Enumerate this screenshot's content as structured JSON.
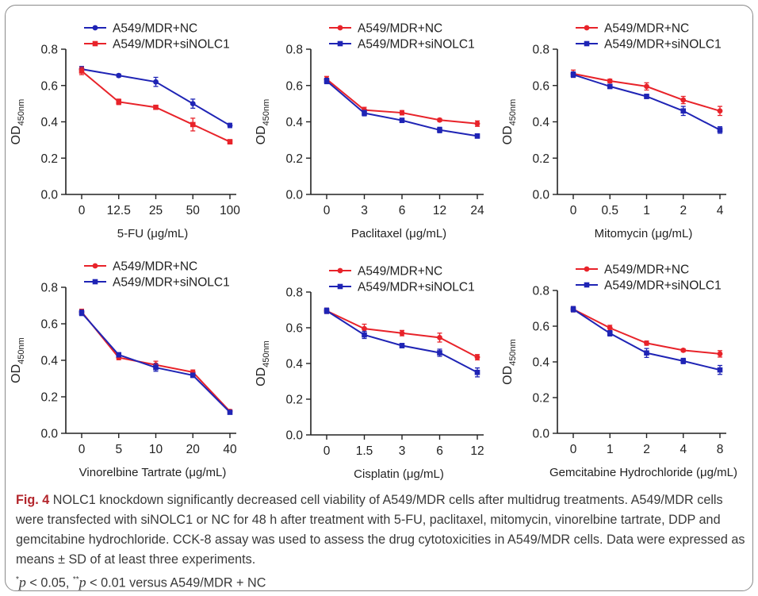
{
  "figure": {
    "label": "Fig. 4",
    "title": "NOLC1 knockdown significantly decreased cell viability of A549/MDR cells after multidrug treatments.",
    "body": "A549/MDR cells were transfected with siNOLC1 or NC for 48 h after treatment with 5-FU, paclitaxel, mitomycin, vinorelbine tartrate, DDP and gemcitabine hydrochloride. CCK-8 assay was used to assess the drug cytotoxicities in A549/MDR cells. Data were expressed as means ± SD of at least three experiments.",
    "sig_p": "p",
    "sig_05": " < 0.05, ",
    "sig_01": " < 0.01 versus A549/MDR + NC",
    "star1": "*",
    "star2": "**"
  },
  "colors": {
    "nc": "#e8232a",
    "si": "#1f24b5",
    "axis": "#222222",
    "fig_label": "#b3262c"
  },
  "chart_data": [
    {
      "type": "line",
      "xlabel": "5-FU (μg/mL)",
      "ylabel": "OD450nm",
      "ylim": [
        0,
        0.8
      ],
      "yticks": [
        "0.0",
        "0.2",
        "0.4",
        "0.6",
        "0.8"
      ],
      "categories": [
        "0",
        "12.5",
        "25",
        "50",
        "100"
      ],
      "legend_order": [
        "A549/MDR+NC",
        "A549/MDR+siNOLC1"
      ],
      "series": [
        {
          "name": "A549/MDR+NC",
          "color": "#1f24b5",
          "marker": "circle",
          "values": [
            0.69,
            0.655,
            0.62,
            0.5,
            0.38
          ],
          "errors": [
            0.015,
            0.008,
            0.025,
            0.025,
            0.012
          ]
        },
        {
          "name": "A549/MDR+siNOLC1",
          "color": "#e8232a",
          "marker": "square",
          "values": [
            0.68,
            0.51,
            0.48,
            0.385,
            0.29
          ],
          "errors": [
            0.02,
            0.015,
            0.01,
            0.035,
            0.012
          ]
        }
      ]
    },
    {
      "type": "line",
      "xlabel": "Paclitaxel (μg/mL)",
      "ylabel": "OD450nm",
      "ylim": [
        0,
        0.8
      ],
      "yticks": [
        "0.0",
        "0.2",
        "0.4",
        "0.6",
        "0.8"
      ],
      "categories": [
        "0",
        "3",
        "6",
        "12",
        "24"
      ],
      "legend_order": [
        "A549/MDR+NC",
        "A549/MDR+siNOLC1"
      ],
      "series": [
        {
          "name": "A549/MDR+NC",
          "color": "#e8232a",
          "marker": "circle",
          "values": [
            0.635,
            0.465,
            0.45,
            0.41,
            0.39
          ],
          "errors": [
            0.015,
            0.015,
            0.012,
            0.008,
            0.015
          ]
        },
        {
          "name": "A549/MDR+siNOLC1",
          "color": "#1f24b5",
          "marker": "square",
          "values": [
            0.625,
            0.448,
            0.408,
            0.355,
            0.322
          ],
          "errors": [
            0.015,
            0.015,
            0.012,
            0.015,
            0.012
          ]
        }
      ]
    },
    {
      "type": "line",
      "xlabel": "Mitomycin (μg/mL)",
      "ylabel": "OD450nm",
      "ylim": [
        0,
        0.8
      ],
      "yticks": [
        "0.0",
        "0.2",
        "0.4",
        "0.6",
        "0.8"
      ],
      "categories": [
        "0",
        "0.5",
        "1",
        "2",
        "4"
      ],
      "legend_order": [
        "A549/MDR+NC",
        "A549/MDR+siNOLC1"
      ],
      "series": [
        {
          "name": "A549/MDR+NC",
          "color": "#e8232a",
          "marker": "circle",
          "values": [
            0.665,
            0.625,
            0.595,
            0.52,
            0.46
          ],
          "errors": [
            0.02,
            0.01,
            0.02,
            0.02,
            0.025
          ]
        },
        {
          "name": "A549/MDR+siNOLC1",
          "color": "#1f24b5",
          "marker": "square",
          "values": [
            0.66,
            0.595,
            0.54,
            0.46,
            0.355
          ],
          "errors": [
            0.015,
            0.012,
            0.012,
            0.025,
            0.018
          ]
        }
      ]
    },
    {
      "type": "line",
      "xlabel": "Vinorelbine Tartrate (μg/mL)",
      "ylabel": "OD450nm",
      "ylim": [
        0,
        0.8
      ],
      "yticks": [
        "0.0",
        "0.2",
        "0.4",
        "0.6",
        "0.8"
      ],
      "categories": [
        "0",
        "5",
        "10",
        "20",
        "40"
      ],
      "legend_order": [
        "A549/MDR+NC",
        "A549/MDR+siNOLC1"
      ],
      "series": [
        {
          "name": "A549/MDR+NC",
          "color": "#e8232a",
          "marker": "circle",
          "values": [
            0.665,
            0.415,
            0.375,
            0.335,
            0.12
          ],
          "errors": [
            0.015,
            0.012,
            0.02,
            0.012,
            0.01
          ]
        },
        {
          "name": "A549/MDR+siNOLC1",
          "color": "#1f24b5",
          "marker": "square",
          "values": [
            0.66,
            0.43,
            0.36,
            0.318,
            0.115
          ],
          "errors": [
            0.015,
            0.012,
            0.02,
            0.012,
            0.01
          ]
        }
      ]
    },
    {
      "type": "line",
      "xlabel": "Cisplatin (μg/mL)",
      "ylabel": "OD450nm",
      "ylim": [
        0,
        0.8
      ],
      "yticks": [
        "0.0",
        "0.2",
        "0.4",
        "0.6",
        "0.8"
      ],
      "categories": [
        "0",
        "1.5",
        "3",
        "6",
        "12"
      ],
      "legend_order": [
        "A549/MDR+NC",
        "A549/MDR+siNOLC1"
      ],
      "series": [
        {
          "name": "A549/MDR+NC",
          "color": "#e8232a",
          "marker": "circle",
          "values": [
            0.695,
            0.595,
            0.57,
            0.545,
            0.435
          ],
          "errors": [
            0.015,
            0.025,
            0.015,
            0.025,
            0.015
          ]
        },
        {
          "name": "A549/MDR+siNOLC1",
          "color": "#1f24b5",
          "marker": "square",
          "values": [
            0.695,
            0.56,
            0.5,
            0.46,
            0.35
          ],
          "errors": [
            0.015,
            0.02,
            0.012,
            0.02,
            0.025
          ]
        }
      ]
    },
    {
      "type": "line",
      "xlabel": "Gemcitabine Hydrochloride (μg/mL)",
      "ylabel": "OD450nm",
      "ylim": [
        0,
        0.8
      ],
      "yticks": [
        "0.0",
        "0.2",
        "0.4",
        "0.6",
        "0.8"
      ],
      "categories": [
        "0",
        "1",
        "2",
        "4",
        "8"
      ],
      "legend_order": [
        "A549/MDR+NC",
        "A549/MDR+siNOLC1"
      ],
      "series": [
        {
          "name": "A549/MDR+NC",
          "color": "#e8232a",
          "marker": "circle",
          "values": [
            0.695,
            0.59,
            0.505,
            0.465,
            0.445
          ],
          "errors": [
            0.015,
            0.015,
            0.012,
            0.008,
            0.018
          ]
        },
        {
          "name": "A549/MDR+siNOLC1",
          "color": "#1f24b5",
          "marker": "square",
          "values": [
            0.695,
            0.56,
            0.45,
            0.405,
            0.355
          ],
          "errors": [
            0.015,
            0.015,
            0.025,
            0.015,
            0.025
          ]
        }
      ]
    }
  ]
}
